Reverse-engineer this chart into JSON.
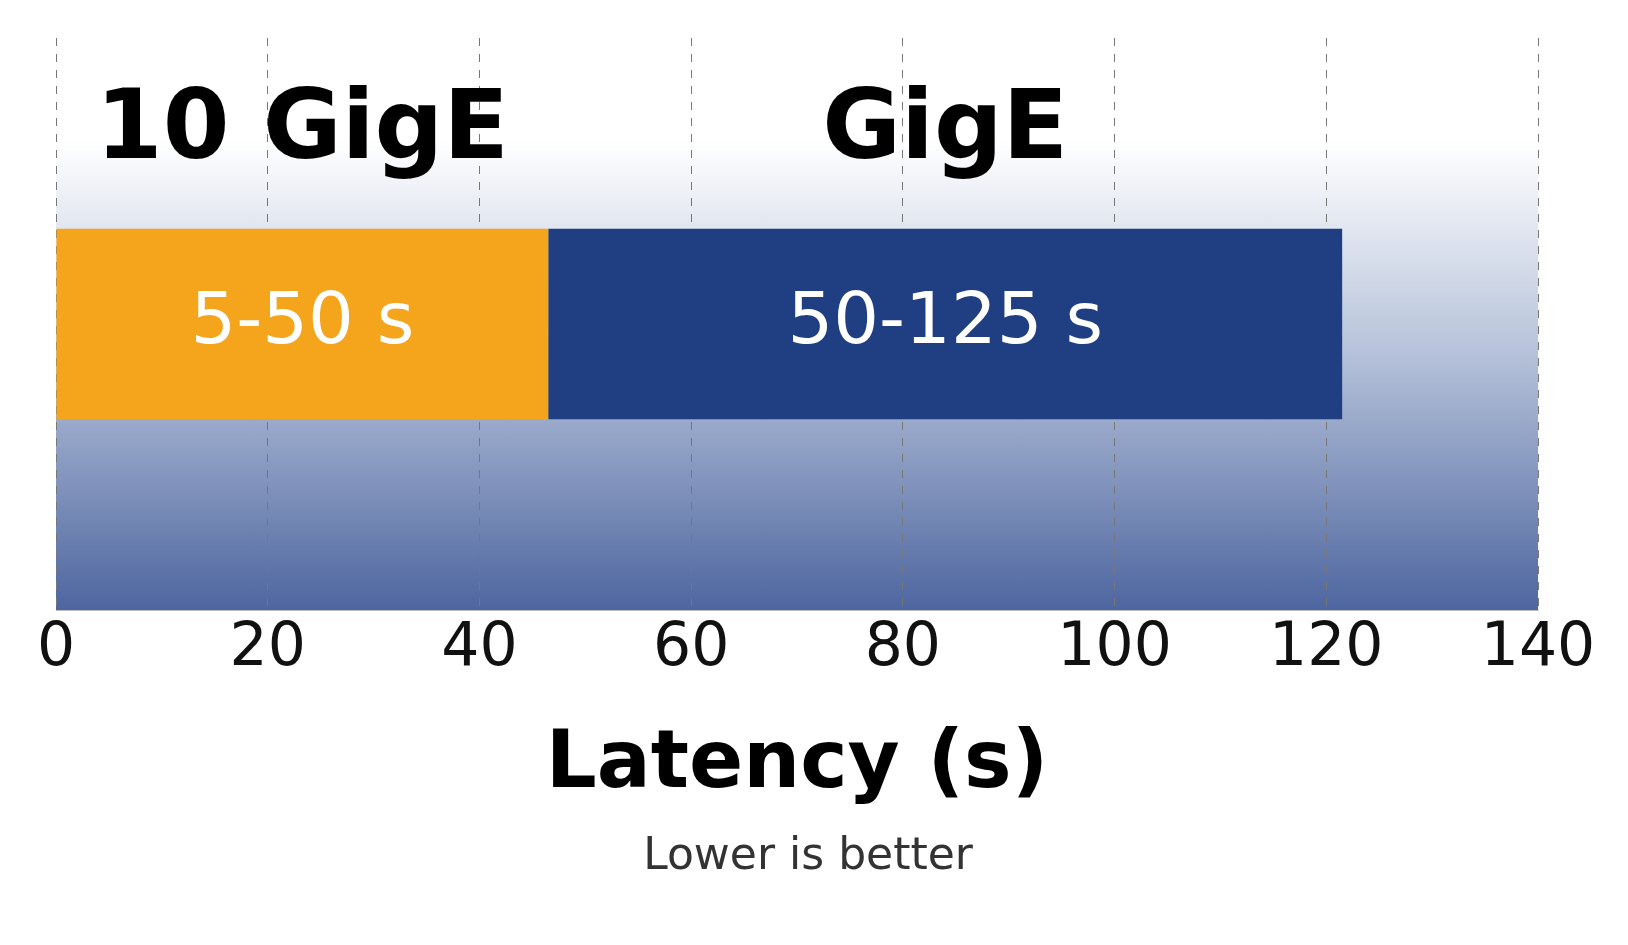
{
  "chart_data": {
    "type": "bar",
    "orientation": "horizontal",
    "stacked": true,
    "categories": [
      null
    ],
    "series": [
      {
        "name": "10 GigE",
        "color": "#f5a51c",
        "values": [
          46.5
        ],
        "value_labels": [
          "5-50 s"
        ]
      },
      {
        "name": "GigE",
        "color": "#1f3f82",
        "values": [
          75
        ],
        "value_labels": [
          "50-125 s"
        ]
      }
    ],
    "xlim": [
      0,
      140
    ],
    "xticks": [
      0,
      20,
      40,
      60,
      80,
      100,
      120,
      140
    ],
    "xlabel": "Latency (s)",
    "annotations": [
      "Lower is better"
    ],
    "grid": "x",
    "line_style": "dashed",
    "tick_labels": "x",
    "legend": false
  }
}
